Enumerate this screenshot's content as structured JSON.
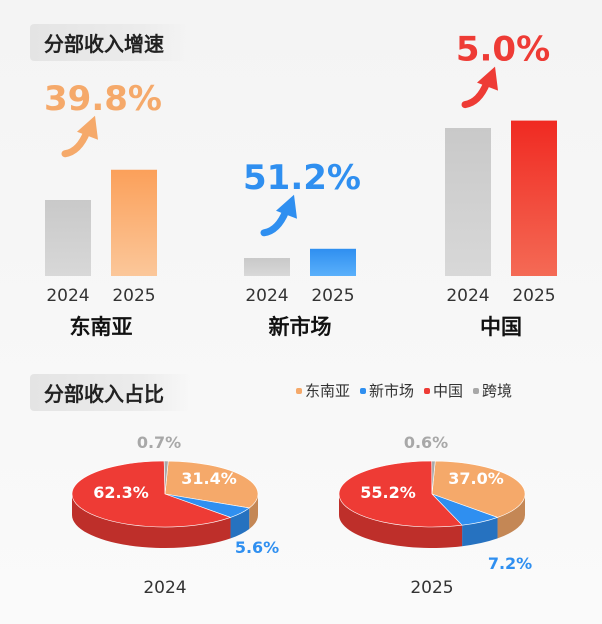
{
  "titles": {
    "growth": "分部收入增速",
    "share": "分部收入占比"
  },
  "colors": {
    "sea": "#f5a96a",
    "new": "#2f8ff0",
    "china": "#ee3b35",
    "cross": "#a8a8a8",
    "bar2024": "#cfcfcf"
  },
  "chart_data": [
    {
      "type": "bar",
      "title": "分部收入增速",
      "groups": [
        {
          "name": "东南亚",
          "categories": [
            "2024",
            "2025"
          ],
          "values": [
            1.0,
            1.398
          ],
          "growth_label": "39.8%",
          "color_key": "sea"
        },
        {
          "name": "新市场",
          "categories": [
            "2024",
            "2025"
          ],
          "values": [
            1.0,
            1.512
          ],
          "growth_label": "51.2%",
          "color_key": "new"
        },
        {
          "name": "中国",
          "categories": [
            "2024",
            "2025"
          ],
          "values": [
            1.0,
            1.05
          ],
          "growth_label": "5.0%",
          "color_key": "china"
        }
      ]
    },
    {
      "type": "pie",
      "title": "分部收入占比",
      "legend": [
        "东南亚",
        "新市场",
        "中国",
        "跨境"
      ],
      "pies": [
        {
          "label": "2024",
          "slices": [
            {
              "name": "东南亚",
              "value": 31.4,
              "label": "31.4%"
            },
            {
              "name": "新市场",
              "value": 5.6,
              "label": "5.6%"
            },
            {
              "name": "中国",
              "value": 62.3,
              "label": "62.3%"
            },
            {
              "name": "跨境",
              "value": 0.7,
              "label": "0.7%"
            }
          ]
        },
        {
          "label": "2025",
          "slices": [
            {
              "name": "东南亚",
              "value": 37.0,
              "label": "37.0%"
            },
            {
              "name": "新市场",
              "value": 7.2,
              "label": "7.2%"
            },
            {
              "name": "中国",
              "value": 55.2,
              "label": "55.2%"
            },
            {
              "name": "跨境",
              "value": 0.6,
              "label": "0.6%"
            }
          ]
        }
      ]
    }
  ]
}
